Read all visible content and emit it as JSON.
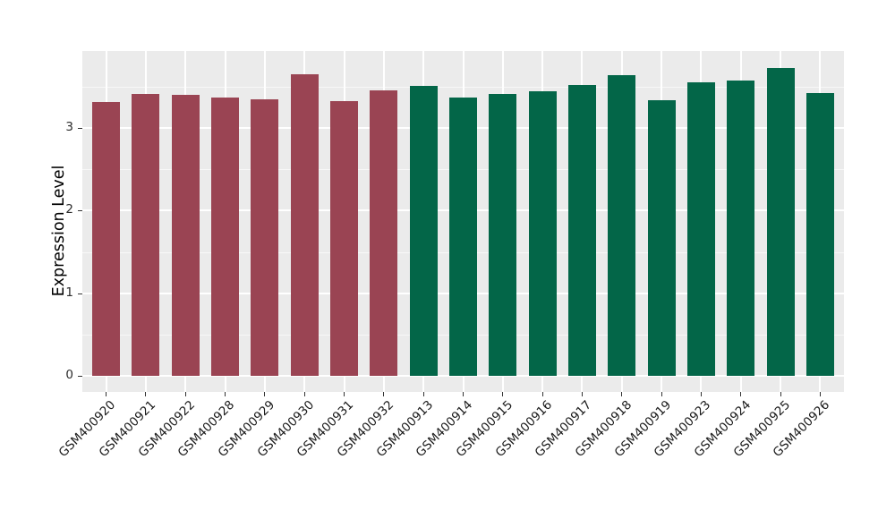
{
  "chart_data": {
    "type": "bar",
    "title": "",
    "xlabel": "",
    "ylabel": "Expression Level",
    "yticks": [
      0,
      1,
      2,
      3
    ],
    "ylim": [
      0,
      3.92
    ],
    "grid": "major and minor horizontal white lines plus vertical white lines at category centers, shown on gray panel",
    "legend_position": "none",
    "categories": [
      "GSM400920",
      "GSM400921",
      "GSM400922",
      "GSM400928",
      "GSM400929",
      "GSM400930",
      "GSM400931",
      "GSM400932",
      "GSM400913",
      "GSM400914",
      "GSM400915",
      "GSM400916",
      "GSM400917",
      "GSM400918",
      "GSM400919",
      "GSM400923",
      "GSM400924",
      "GSM400925",
      "GSM400926"
    ],
    "values": [
      3.32,
      3.41,
      3.4,
      3.37,
      3.35,
      3.65,
      3.33,
      3.46,
      3.51,
      3.37,
      3.41,
      3.44,
      3.52,
      3.64,
      3.34,
      3.55,
      3.57,
      3.73,
      3.42
    ],
    "groups": [
      "maroon",
      "maroon",
      "maroon",
      "maroon",
      "maroon",
      "maroon",
      "maroon",
      "maroon",
      "green",
      "green",
      "green",
      "green",
      "green",
      "green",
      "green",
      "green",
      "green",
      "green",
      "green"
    ],
    "colors": {
      "maroon": "#9A4453",
      "green": "#036648"
    },
    "panel_background": "#EBEBEB",
    "gridline_color": "#FFFFFF",
    "figure_background": "#FFFFFF"
  }
}
